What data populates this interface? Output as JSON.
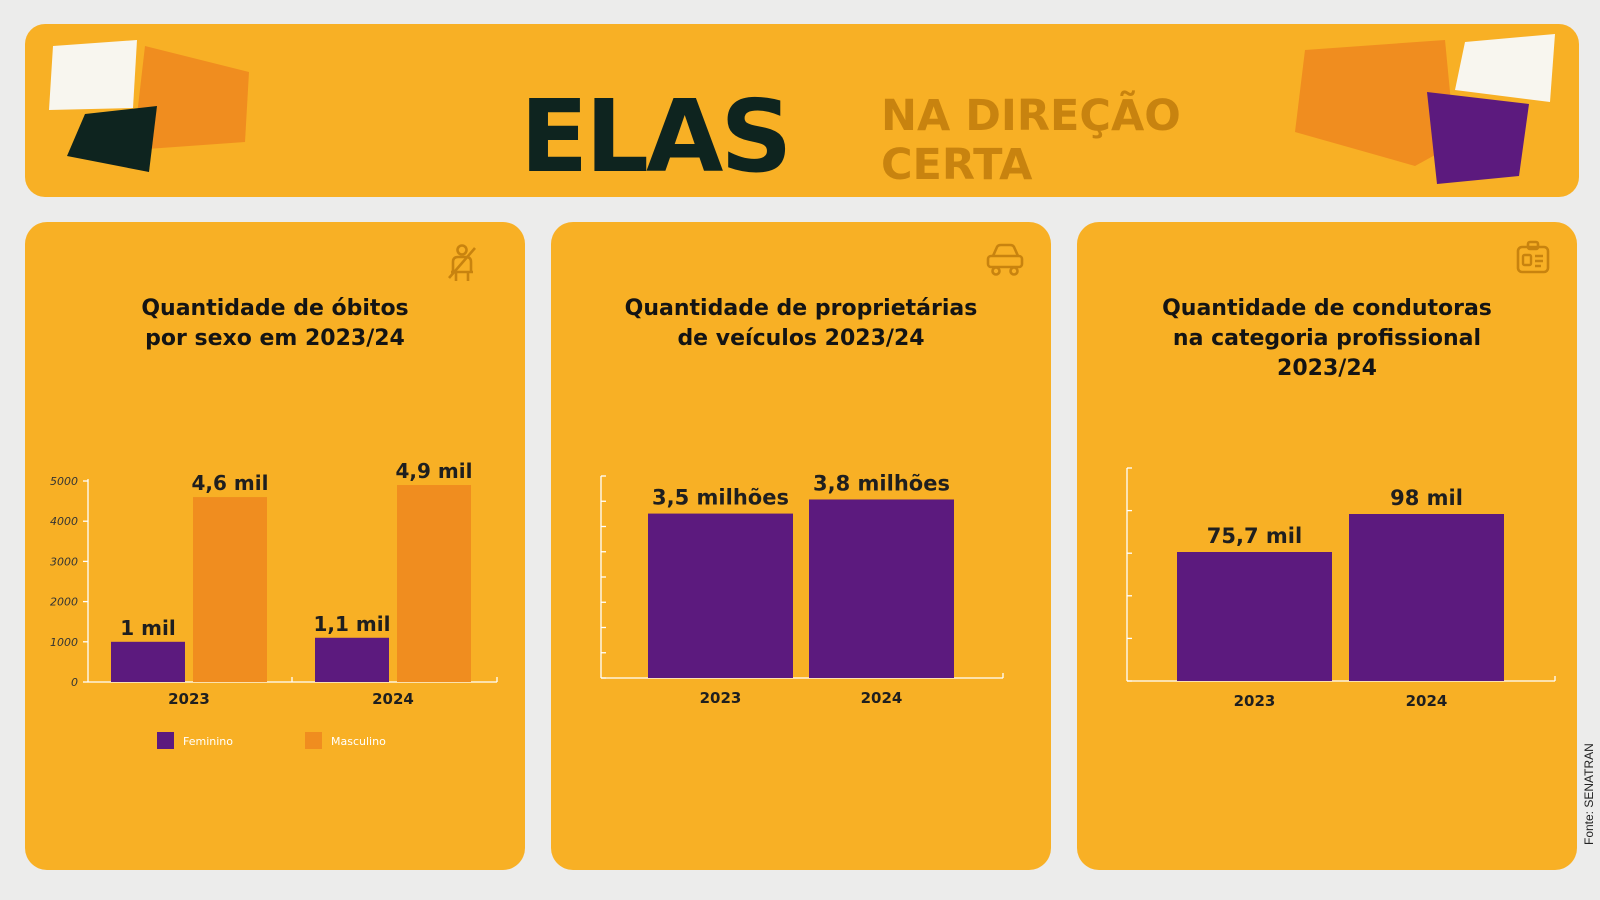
{
  "header": {
    "title_main": "ELAS",
    "title_sub_line1": "NA DIREÇÃO",
    "title_sub_line2": "CERTA"
  },
  "colors": {
    "background": "#ececeb",
    "panel": "#f8b025",
    "feminino": "#5c1a7e",
    "masculino": "#f08d1f",
    "title_dark": "#0e241f",
    "title_sub": "#c8830f"
  },
  "panels": [
    {
      "title_line1": "Quantidade de óbitos",
      "title_line2": "por sexo em 2023/24",
      "title_line3": "",
      "icon": "no-seatbelt-icon"
    },
    {
      "title_line1": "Quantidade de proprietárias",
      "title_line2": "de veículos 2023/24",
      "title_line3": "",
      "icon": "car-icon"
    },
    {
      "title_line1": "Quantidade de condutoras",
      "title_line2": "na categoria profissional",
      "title_line3": "2023/24",
      "icon": "id-card-icon"
    }
  ],
  "chart_data": [
    {
      "type": "bar",
      "title": "Quantidade de óbitos por sexo em 2023/24",
      "categories": [
        "2023",
        "2024"
      ],
      "series": [
        {
          "name": "Feminino",
          "values": [
            1000,
            1100
          ],
          "labels": [
            "1 mil",
            "1,1 mil"
          ],
          "color": "#5c1a7e"
        },
        {
          "name": "Masculino",
          "values": [
            4600,
            4900
          ],
          "labels": [
            "4,6 mil",
            "4,9 mil"
          ],
          "color": "#f08d1f"
        }
      ],
      "yticks": [
        "0",
        "1000",
        "2000",
        "3000",
        "4000",
        "5000"
      ],
      "ylim": [
        0,
        5000
      ],
      "legend": "bottom"
    },
    {
      "type": "bar",
      "title": "Quantidade de proprietárias de veículos 2023/24",
      "categories": [
        "2023",
        "2024"
      ],
      "values": [
        3.5,
        3.8
      ],
      "labels": [
        "3,5 milhões",
        "3,8 milhões"
      ],
      "color": "#5c1a7e",
      "ylim": [
        0,
        4.3
      ]
    },
    {
      "type": "bar",
      "title": "Quantidade de condutoras na categoria profissional 2023/24",
      "categories": [
        "2023",
        "2024"
      ],
      "values": [
        75.7,
        98
      ],
      "labels": [
        "75,7 mil",
        "98 mil"
      ],
      "color": "#5c1a7e",
      "ylim": [
        0,
        125
      ]
    }
  ],
  "source": "Fonte: SENATRAN"
}
